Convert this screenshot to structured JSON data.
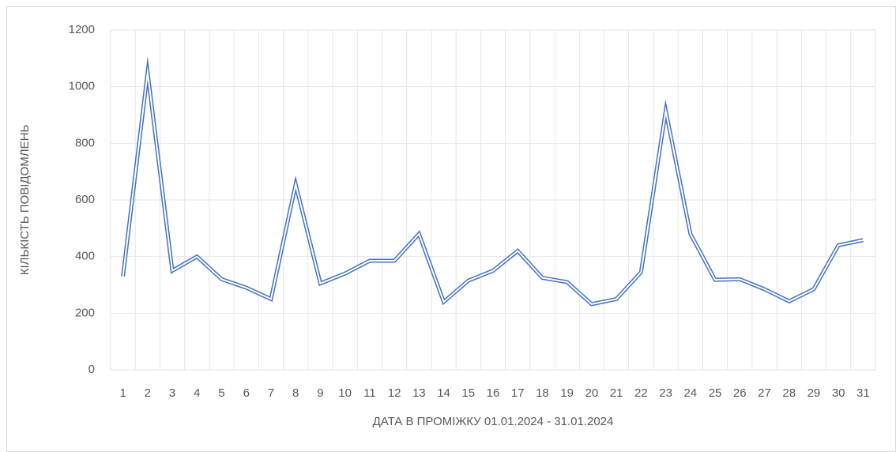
{
  "chart_data": {
    "type": "line",
    "x_label": "ДАТА В ПРОМІЖКУ 01.01.2024 - 31.01.2024",
    "y_label": "КІЛЬКІСТЬ ПОВІДОМЛЕНЬ",
    "categories": [
      "1",
      "2",
      "3",
      "4",
      "5",
      "6",
      "7",
      "8",
      "9",
      "10",
      "11",
      "12",
      "13",
      "14",
      "15",
      "16",
      "17",
      "18",
      "19",
      "20",
      "21",
      "22",
      "23",
      "24",
      "25",
      "26",
      "27",
      "28",
      "29",
      "30",
      "31"
    ],
    "values": [
      330,
      1050,
      350,
      400,
      320,
      290,
      250,
      655,
      305,
      340,
      385,
      385,
      480,
      240,
      315,
      350,
      420,
      325,
      310,
      232,
      250,
      345,
      915,
      480,
      318,
      320,
      285,
      242,
      285,
      440,
      458
    ],
    "color": "#4472c4",
    "ylim": [
      0,
      1200
    ],
    "yticks": [
      0,
      200,
      400,
      600,
      800,
      1000,
      1200
    ],
    "grid": true
  }
}
